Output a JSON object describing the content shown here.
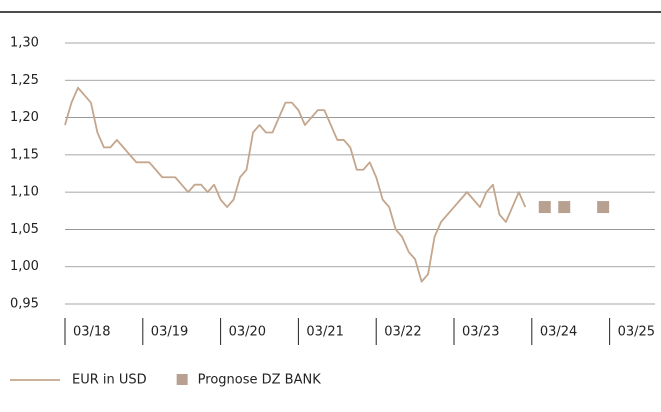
{
  "chart_data": {
    "type": "line",
    "xlim": [
      "03/18",
      "10/25"
    ],
    "xticks": [
      "03/18",
      "03/19",
      "03/20",
      "03/21",
      "03/22",
      "03/23",
      "03/24",
      "03/25"
    ],
    "ylim": [
      0.95,
      1.3
    ],
    "yticks": [
      {
        "value": 0.95,
        "label": "0,95"
      },
      {
        "value": 1.0,
        "label": "1,00"
      },
      {
        "value": 1.05,
        "label": "1,05"
      },
      {
        "value": 1.1,
        "label": "1,10"
      },
      {
        "value": 1.15,
        "label": "1,15"
      },
      {
        "value": 1.2,
        "label": "1,20"
      },
      {
        "value": 1.25,
        "label": "1,25"
      },
      {
        "value": 1.3,
        "label": "1,30"
      }
    ],
    "grid": true,
    "legend": "bottom-left",
    "series": [
      {
        "name": "EUR in USD",
        "color": "#c4a68d",
        "x": [
          "03/18",
          "04/18",
          "05/18",
          "06/18",
          "07/18",
          "08/18",
          "09/18",
          "10/18",
          "11/18",
          "12/18",
          "01/19",
          "02/19",
          "03/19",
          "04/19",
          "05/19",
          "06/19",
          "07/19",
          "08/19",
          "09/19",
          "10/19",
          "11/19",
          "12/19",
          "01/20",
          "02/20",
          "03/20",
          "04/20",
          "05/20",
          "06/20",
          "07/20",
          "08/20",
          "09/20",
          "10/20",
          "11/20",
          "12/20",
          "01/21",
          "02/21",
          "03/21",
          "04/21",
          "05/21",
          "06/21",
          "07/21",
          "08/21",
          "09/21",
          "10/21",
          "11/21",
          "12/21",
          "01/22",
          "02/22",
          "03/22",
          "04/22",
          "05/22",
          "06/22",
          "07/22",
          "08/22",
          "09/22",
          "10/22",
          "11/22",
          "12/22",
          "01/23",
          "02/23",
          "03/23",
          "04/23",
          "05/23",
          "06/23",
          "07/23",
          "08/23",
          "09/23",
          "10/23",
          "11/23",
          "12/23",
          "01/24",
          "02/24"
        ],
        "values": [
          1.19,
          1.22,
          1.24,
          1.23,
          1.22,
          1.18,
          1.16,
          1.16,
          1.17,
          1.16,
          1.15,
          1.14,
          1.14,
          1.14,
          1.13,
          1.12,
          1.12,
          1.12,
          1.11,
          1.1,
          1.11,
          1.11,
          1.1,
          1.11,
          1.09,
          1.08,
          1.09,
          1.12,
          1.13,
          1.18,
          1.19,
          1.18,
          1.18,
          1.2,
          1.22,
          1.22,
          1.21,
          1.19,
          1.2,
          1.21,
          1.21,
          1.19,
          1.17,
          1.17,
          1.16,
          1.13,
          1.13,
          1.14,
          1.12,
          1.09,
          1.08,
          1.05,
          1.04,
          1.02,
          1.01,
          0.98,
          0.99,
          1.04,
          1.06,
          1.07,
          1.08,
          1.09,
          1.1,
          1.09,
          1.08,
          1.1,
          1.11,
          1.07,
          1.06,
          1.08,
          1.1,
          1.08
        ]
      },
      {
        "name": "Prognose DZ BANK",
        "color": "#b9a192",
        "marker": "square",
        "x": [
          "05/24",
          "08/24",
          "02/25"
        ],
        "values": [
          1.08,
          1.08,
          1.08
        ]
      }
    ]
  }
}
